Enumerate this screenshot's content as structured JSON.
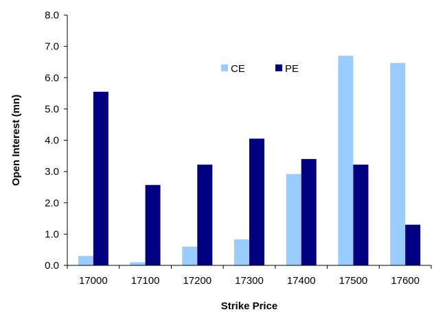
{
  "chart_data": {
    "type": "bar",
    "categories": [
      "17000",
      "17100",
      "17200",
      "17300",
      "17400",
      "17500",
      "17600"
    ],
    "series": [
      {
        "name": "CE",
        "color": "#99ccff",
        "values": [
          0.3,
          0.1,
          0.6,
          0.83,
          2.92,
          6.7,
          6.47
        ]
      },
      {
        "name": "PE",
        "color": "#000080",
        "values": [
          5.55,
          2.57,
          3.22,
          4.05,
          3.4,
          3.22,
          1.3
        ]
      }
    ],
    "title": "",
    "xlabel": "Strike Price",
    "ylabel": "Open Interest (mn)",
    "ylim": [
      0,
      8
    ],
    "yticks": [
      "0.0",
      "1.0",
      "2.0",
      "3.0",
      "4.0",
      "5.0",
      "6.0",
      "7.0",
      "8.0"
    ],
    "grid": false,
    "legend_position": "top-center"
  }
}
